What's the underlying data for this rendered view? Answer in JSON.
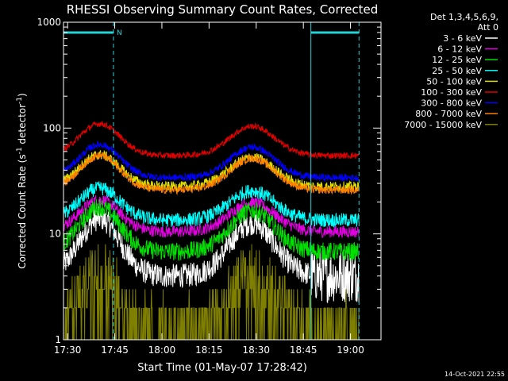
{
  "chart_data": {
    "type": "line",
    "title": "RHESSI Observing Summary Count Rates, Corrected",
    "xlabel": "Start Time (01-May-07 17:28:42)",
    "ylabel_main": "Corrected Count Rate (s",
    "ylabel_sup1": "-1",
    "ylabel_mid": " detector",
    "ylabel_sup2": "-1",
    "ylabel_end": ")",
    "ylog": true,
    "ylim": [
      1,
      1000
    ],
    "xlim_minutes": [
      0,
      101
    ],
    "x_ticks": [
      {
        "label": "17:30",
        "min": 1.3
      },
      {
        "label": "17:45",
        "min": 16.3
      },
      {
        "label": "18:00",
        "min": 31.3
      },
      {
        "label": "18:15",
        "min": 46.3
      },
      {
        "label": "18:30",
        "min": 61.3
      },
      {
        "label": "18:45",
        "min": 76.3
      },
      {
        "label": "19:00",
        "min": 91.3
      }
    ],
    "y_ticks": [
      {
        "label": "1",
        "v": 1
      },
      {
        "label": "10",
        "v": 10
      },
      {
        "label": "100",
        "v": 100
      },
      {
        "label": "1000",
        "v": 1000
      }
    ],
    "legend_header": [
      "Det 1,3,4,5,6,9,",
      "Att 0"
    ],
    "footer_timestamp": "14-Oct-2021 22:55",
    "night_marker": "N",
    "markers": {
      "color": "#22d3d8",
      "solid_minutes": [
        0,
        78.7
      ],
      "dashed_minutes": [
        15.9,
        94.0
      ],
      "bars": [
        [
          0,
          15.9
        ],
        [
          78.7,
          94.0
        ]
      ]
    },
    "series": [
      {
        "name": "3 - 6 keV",
        "color": "#ffffff",
        "lo": 4,
        "hi": 14,
        "noise": 0.12,
        "orbit": true
      },
      {
        "name": "6 - 12 keV",
        "color": "#e000e0",
        "lo": 10.5,
        "hi": 21,
        "noise": 0.06
      },
      {
        "name": "12 - 25 keV",
        "color": "#00e000",
        "lo": 6.8,
        "hi": 18,
        "noise": 0.09
      },
      {
        "name": "25 - 50 keV",
        "color": "#00ffff",
        "lo": 13.5,
        "hi": 27,
        "noise": 0.07
      },
      {
        "name": "50 - 100 keV",
        "color": "#e0e000",
        "lo": 28,
        "hi": 56,
        "noise": 0.05
      },
      {
        "name": "100 - 300 keV",
        "color": "#e00000",
        "lo": 55,
        "hi": 110,
        "noise": 0.03
      },
      {
        "name": "300 - 800 keV",
        "color": "#0000ff",
        "lo": 34,
        "hi": 70,
        "noise": 0.035
      },
      {
        "name": "800 - 7000 keV",
        "color": "#ff8000",
        "lo": 26,
        "hi": 55,
        "noise": 0.04
      },
      {
        "name": "7000 - 15000 keV",
        "color": "#808000",
        "lo": 1.4,
        "hi": 4.6,
        "noise": 0.25,
        "step": true
      }
    ]
  }
}
